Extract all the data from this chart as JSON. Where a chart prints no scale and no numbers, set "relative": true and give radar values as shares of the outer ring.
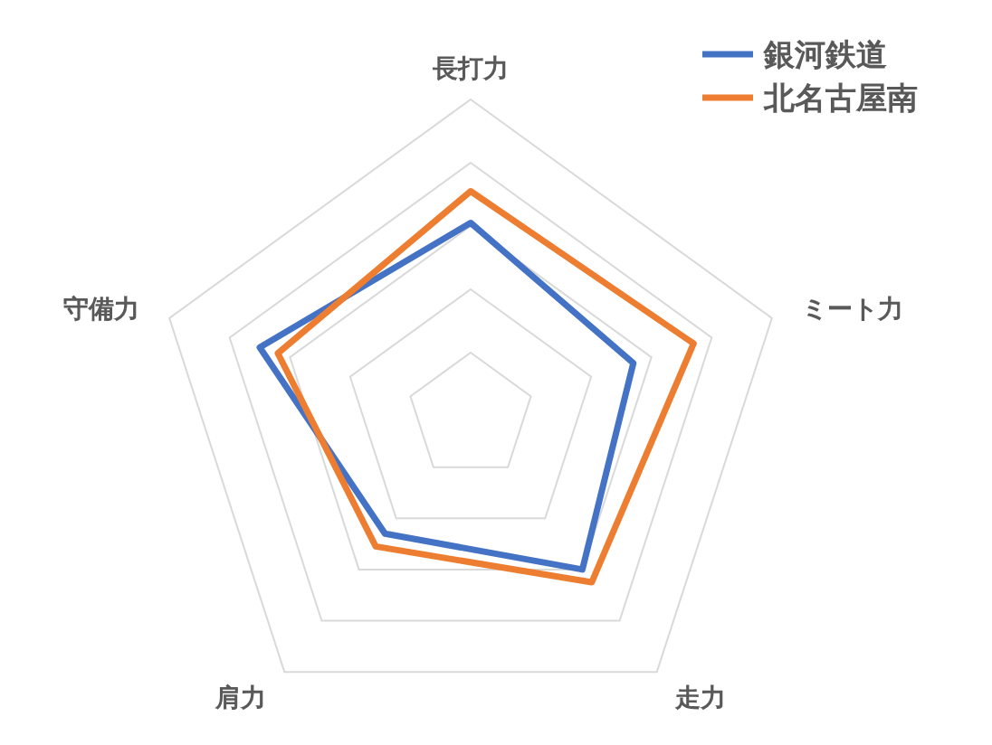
{
  "chart_data": {
    "type": "radar",
    "relative": true,
    "grid": true,
    "legend": "top right",
    "marker": "none",
    "line_style": "solid",
    "categories": [
      "長打力",
      "ミート力",
      "走力",
      "肩力",
      "守備力"
    ],
    "series": [
      {
        "name": "銀河鉄道",
        "color": "#4472c4",
        "values": [
          0.61,
          0.54,
          0.6,
          0.46,
          0.7
        ]
      },
      {
        "name": "北名古屋南",
        "color": "#ed7d31",
        "values": [
          0.71,
          0.74,
          0.65,
          0.51,
          0.64
        ]
      }
    ]
  }
}
